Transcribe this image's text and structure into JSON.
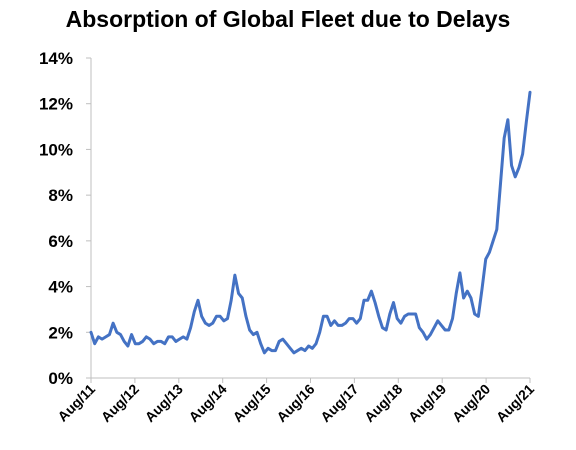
{
  "chart_data": {
    "type": "line",
    "title": "Absorption of Global Fleet due to Delays",
    "xlabel": "",
    "ylabel": "",
    "ylim": [
      0,
      14
    ],
    "ytick_labels": [
      "0%",
      "2%",
      "4%",
      "6%",
      "8%",
      "10%",
      "12%",
      "14%"
    ],
    "y_unit": "%",
    "xtick_labels": [
      "Aug/11",
      "Aug/12",
      "Aug/13",
      "Aug/14",
      "Aug/15",
      "Aug/16",
      "Aug/17",
      "Aug/18",
      "Aug/19",
      "Aug/20",
      "Aug/21"
    ],
    "grid": false,
    "legend": "none",
    "colors": {
      "line": "#4472C4",
      "axis": "#bfbfbf",
      "text": "#000000"
    },
    "series": [
      {
        "values": [
          2.0,
          1.5,
          1.8,
          1.7,
          1.8,
          1.9,
          2.4,
          2.0,
          1.9,
          1.6,
          1.4,
          1.9,
          1.5,
          1.5,
          1.6,
          1.8,
          1.7,
          1.5,
          1.6,
          1.6,
          1.5,
          1.8,
          1.8,
          1.6,
          1.7,
          1.8,
          1.7,
          2.2,
          2.9,
          3.4,
          2.7,
          2.4,
          2.3,
          2.4,
          2.7,
          2.7,
          2.5,
          2.6,
          3.4,
          4.5,
          3.7,
          3.5,
          2.7,
          2.1,
          1.9,
          2.0,
          1.5,
          1.1,
          1.3,
          1.2,
          1.2,
          1.6,
          1.7,
          1.5,
          1.3,
          1.1,
          1.2,
          1.3,
          1.2,
          1.4,
          1.3,
          1.5,
          2.0,
          2.7,
          2.7,
          2.3,
          2.5,
          2.3,
          2.3,
          2.4,
          2.6,
          2.6,
          2.4,
          2.6,
          3.4,
          3.4,
          3.8,
          3.3,
          2.7,
          2.2,
          2.1,
          2.8,
          3.3,
          2.6,
          2.4,
          2.7,
          2.8,
          2.8,
          2.8,
          2.2,
          2.0,
          1.7,
          1.9,
          2.2,
          2.5,
          2.3,
          2.1,
          2.1,
          2.6,
          3.7,
          4.6,
          3.5,
          3.8,
          3.5,
          2.8,
          2.7,
          3.9,
          5.2,
          5.5,
          6.0,
          6.5,
          8.5,
          10.5,
          11.3,
          9.3,
          8.8,
          9.2,
          9.8,
          11.2,
          12.5
        ]
      }
    ]
  }
}
